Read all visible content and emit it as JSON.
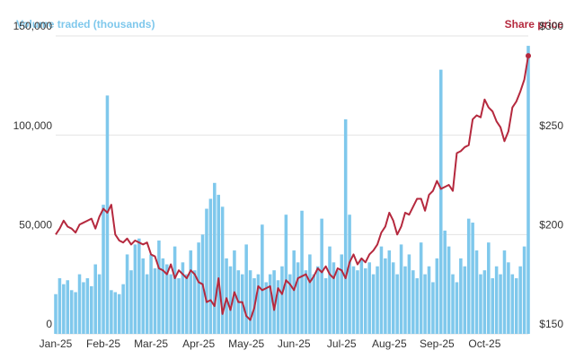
{
  "chart_data": {
    "type": "bar",
    "categories": [
      "Jan-25",
      null,
      null,
      null,
      null,
      null,
      null,
      null,
      null,
      null,
      null,
      null,
      "Feb-25",
      null,
      null,
      null,
      null,
      null,
      null,
      null,
      null,
      null,
      null,
      null,
      "Mar-25",
      null,
      null,
      null,
      null,
      null,
      null,
      null,
      null,
      null,
      null,
      null,
      "Apr-25",
      null,
      null,
      null,
      null,
      null,
      null,
      null,
      null,
      null,
      null,
      null,
      "May-25",
      null,
      null,
      null,
      null,
      null,
      null,
      null,
      null,
      null,
      null,
      null,
      "Jun-25",
      null,
      null,
      null,
      null,
      null,
      null,
      null,
      null,
      null,
      null,
      null,
      "Jul-25",
      null,
      null,
      null,
      null,
      null,
      null,
      null,
      null,
      null,
      null,
      null,
      "Aug-25",
      null,
      null,
      null,
      null,
      null,
      null,
      null,
      null,
      null,
      null,
      null,
      "Sep-25",
      null,
      null,
      null,
      null,
      null,
      null,
      null,
      null,
      null,
      null,
      null,
      "Oct-25",
      null,
      null,
      null,
      null,
      null,
      null,
      null,
      null,
      null,
      null,
      null
    ],
    "series": [
      {
        "name": "Volume traded (thousands)",
        "color": "#7fc8ec",
        "type": "bar",
        "values": [
          20000,
          28000,
          25000,
          27000,
          22000,
          21000,
          30000,
          26000,
          28000,
          24000,
          35000,
          30000,
          65000,
          120000,
          22000,
          21000,
          20000,
          25000,
          40000,
          32000,
          45000,
          48000,
          38000,
          30000,
          40000,
          33000,
          47000,
          38000,
          35000,
          30000,
          44000,
          28000,
          36000,
          30000,
          42000,
          32000,
          46000,
          50000,
          63000,
          68000,
          76000,
          70000,
          64000,
          38000,
          34000,
          42000,
          32000,
          30000,
          45000,
          32000,
          28000,
          30000,
          55000,
          26000,
          30000,
          32000,
          27000,
          34000,
          60000,
          30000,
          42000,
          36000,
          62000,
          32000,
          40000,
          30000,
          34000,
          58000,
          28000,
          44000,
          36000,
          32000,
          40000,
          108000,
          60000,
          34000,
          32000,
          38000,
          33000,
          36000,
          30000,
          34000,
          44000,
          38000,
          42000,
          36000,
          30000,
          45000,
          34000,
          40000,
          32000,
          28000,
          46000,
          30000,
          34000,
          26000,
          38000,
          133000,
          52000,
          44000,
          30000,
          26000,
          38000,
          34000,
          58000,
          56000,
          42000,
          30000,
          32000,
          46000,
          28000,
          34000,
          30000,
          42000,
          36000,
          30000,
          28000,
          34000,
          44000,
          145000
        ]
      },
      {
        "name": "Share price",
        "color": "#b5293e",
        "type": "line",
        "axis": "y2",
        "values": [
          200,
          203,
          207,
          204,
          203,
          201,
          205,
          206,
          207,
          208,
          203,
          209,
          213,
          211,
          215,
          200,
          197,
          196,
          198,
          195,
          197,
          196,
          195,
          196,
          190,
          189,
          183,
          182,
          180,
          185,
          178,
          182,
          180,
          178,
          182,
          180,
          176,
          175,
          166,
          167,
          164,
          178,
          160,
          168,
          162,
          171,
          166,
          166,
          159,
          157,
          163,
          174,
          172,
          173,
          174,
          162,
          173,
          170,
          177,
          175,
          172,
          178,
          179,
          180,
          176,
          179,
          183,
          181,
          184,
          180,
          178,
          183,
          182,
          178,
          186,
          190,
          185,
          188,
          186,
          190,
          192,
          195,
          201,
          204,
          211,
          207,
          200,
          204,
          211,
          210,
          214,
          218,
          218,
          212,
          220,
          222,
          227,
          223,
          224,
          225,
          222,
          241,
          242,
          244,
          245,
          258,
          260,
          259,
          268,
          264,
          262,
          257,
          254,
          247,
          252,
          264,
          267,
          272,
          278,
          290
        ]
      }
    ],
    "ylim": [
      0,
      150000
    ],
    "yticks": [
      0,
      {
        "value": 50000,
        "label": "50,000"
      },
      {
        "value": 100000,
        "label": "100,000"
      },
      {
        "value": 150000,
        "label": "150,000"
      }
    ],
    "y2lim": [
      150,
      300
    ],
    "y2ticks": [
      {
        "value": 150,
        "label": "$150"
      },
      {
        "value": 200,
        "label": "$200"
      },
      {
        "value": 250,
        "label": "$250"
      },
      {
        "value": 300,
        "label": "$300"
      }
    ],
    "grid": true
  }
}
